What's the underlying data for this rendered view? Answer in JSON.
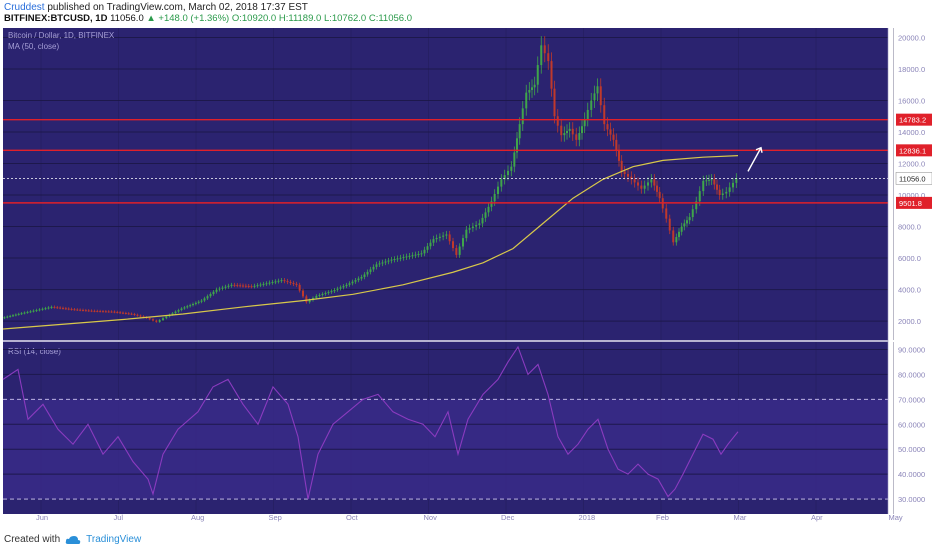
{
  "header": {
    "author": "Cruddest",
    "published_text": "published on TradingView.com, March 02, 2018 17:37 EST",
    "symbol": "BITFINEX:BTCUSD, 1D",
    "last": "11056.0",
    "change": "▲ +148.0 (+1.36%)",
    "open": "O:10920.0",
    "high": "H:11189.0",
    "low": "L:10762.0",
    "close": "C:11056.0"
  },
  "footer": {
    "created_with": "Created with",
    "brand": "TradingView"
  },
  "colors": {
    "background": "#2b2370",
    "grid": "#1d184c",
    "sma": "#d8c84a",
    "level_line": "#e0202a",
    "rsi_line": "#8a3bbf",
    "rsi_band": "#3a2a8a",
    "candle_up": "#3fa64a",
    "candle_down": "#c0392b",
    "label_bg": "#e0202a"
  },
  "chart_data": [
    {
      "type": "line",
      "title": "Bitcoin / Dollar, 1D, BITFINEX",
      "indicator": "MA (50, close)",
      "x_tick_labels": [
        "Jun",
        "Jul",
        "Aug",
        "Sep",
        "Oct",
        "Nov",
        "Dec",
        "2018",
        "Feb",
        "Mar",
        "Apr",
        "May"
      ],
      "y_tick_labels": [
        "2000.0",
        "4000.0",
        "6000.0",
        "8000.0",
        "10000.0",
        "12000.0",
        "14000.0",
        "16000.0",
        "18000.0",
        "20000.0"
      ],
      "ylim": [
        800,
        20600
      ],
      "price_series": [
        {
          "x": 0,
          "y": 2200
        },
        {
          "x": 20,
          "y": 2500
        },
        {
          "x": 35,
          "y": 2700
        },
        {
          "x": 50,
          "y": 2900
        },
        {
          "x": 70,
          "y": 2750
        },
        {
          "x": 90,
          "y": 2650
        },
        {
          "x": 110,
          "y": 2600
        },
        {
          "x": 130,
          "y": 2450
        },
        {
          "x": 145,
          "y": 2200
        },
        {
          "x": 155,
          "y": 1950
        },
        {
          "x": 165,
          "y": 2300
        },
        {
          "x": 180,
          "y": 2800
        },
        {
          "x": 200,
          "y": 3300
        },
        {
          "x": 215,
          "y": 4000
        },
        {
          "x": 230,
          "y": 4300
        },
        {
          "x": 250,
          "y": 4200
        },
        {
          "x": 265,
          "y": 4400
        },
        {
          "x": 280,
          "y": 4600
        },
        {
          "x": 295,
          "y": 4300
        },
        {
          "x": 305,
          "y": 3200
        },
        {
          "x": 315,
          "y": 3600
        },
        {
          "x": 330,
          "y": 3900
        },
        {
          "x": 345,
          "y": 4300
        },
        {
          "x": 360,
          "y": 4800
        },
        {
          "x": 375,
          "y": 5600
        },
        {
          "x": 390,
          "y": 5900
        },
        {
          "x": 405,
          "y": 6100
        },
        {
          "x": 420,
          "y": 6300
        },
        {
          "x": 432,
          "y": 7200
        },
        {
          "x": 445,
          "y": 7500
        },
        {
          "x": 455,
          "y": 6200
        },
        {
          "x": 465,
          "y": 7800
        },
        {
          "x": 478,
          "y": 8200
        },
        {
          "x": 490,
          "y": 9600
        },
        {
          "x": 500,
          "y": 11000
        },
        {
          "x": 510,
          "y": 11800
        },
        {
          "x": 518,
          "y": 14500
        },
        {
          "x": 525,
          "y": 16500
        },
        {
          "x": 533,
          "y": 17000
        },
        {
          "x": 540,
          "y": 19500
        },
        {
          "x": 547,
          "y": 18500
        },
        {
          "x": 553,
          "y": 15000
        },
        {
          "x": 560,
          "y": 13800
        },
        {
          "x": 568,
          "y": 14200
        },
        {
          "x": 575,
          "y": 13500
        },
        {
          "x": 583,
          "y": 14800
        },
        {
          "x": 590,
          "y": 16000
        },
        {
          "x": 596,
          "y": 16900
        },
        {
          "x": 603,
          "y": 14500
        },
        {
          "x": 612,
          "y": 13500
        },
        {
          "x": 620,
          "y": 11500
        },
        {
          "x": 630,
          "y": 11000
        },
        {
          "x": 640,
          "y": 10400
        },
        {
          "x": 650,
          "y": 11000
        },
        {
          "x": 658,
          "y": 9800
        },
        {
          "x": 665,
          "y": 8500
        },
        {
          "x": 672,
          "y": 7000
        },
        {
          "x": 680,
          "y": 8000
        },
        {
          "x": 688,
          "y": 8600
        },
        {
          "x": 695,
          "y": 9600
        },
        {
          "x": 702,
          "y": 10900
        },
        {
          "x": 710,
          "y": 11000
        },
        {
          "x": 718,
          "y": 10000
        },
        {
          "x": 725,
          "y": 10200
        },
        {
          "x": 735,
          "y": 11056
        }
      ],
      "sma_series": [
        {
          "x": 0,
          "y": 1500
        },
        {
          "x": 60,
          "y": 1800
        },
        {
          "x": 120,
          "y": 2100
        },
        {
          "x": 180,
          "y": 2450
        },
        {
          "x": 240,
          "y": 2900
        },
        {
          "x": 300,
          "y": 3300
        },
        {
          "x": 350,
          "y": 3700
        },
        {
          "x": 400,
          "y": 4300
        },
        {
          "x": 450,
          "y": 5100
        },
        {
          "x": 480,
          "y": 5700
        },
        {
          "x": 510,
          "y": 6600
        },
        {
          "x": 540,
          "y": 8200
        },
        {
          "x": 570,
          "y": 9800
        },
        {
          "x": 600,
          "y": 11000
        },
        {
          "x": 630,
          "y": 11800
        },
        {
          "x": 660,
          "y": 12200
        },
        {
          "x": 700,
          "y": 12400
        },
        {
          "x": 735,
          "y": 12500
        }
      ],
      "levels": [
        {
          "value": 14783.2,
          "label": "14783.2"
        },
        {
          "value": 12836.1,
          "label": "12836.1"
        },
        {
          "value": 9501.8,
          "label": "9501.8"
        }
      ],
      "current_price": {
        "value": 11056.0,
        "label": "11056.0"
      },
      "grid": true
    },
    {
      "type": "line",
      "title": "RSI (14, close)",
      "y_tick_labels": [
        "30.0000",
        "40.0000",
        "50.0000",
        "60.0000",
        "70.0000",
        "80.0000",
        "90.0000"
      ],
      "ylim": [
        24,
        93
      ],
      "overbought": 70,
      "oversold": 30,
      "series": [
        {
          "x": 0,
          "y": 78
        },
        {
          "x": 15,
          "y": 82
        },
        {
          "x": 25,
          "y": 62
        },
        {
          "x": 40,
          "y": 68
        },
        {
          "x": 55,
          "y": 58
        },
        {
          "x": 70,
          "y": 52
        },
        {
          "x": 85,
          "y": 60
        },
        {
          "x": 100,
          "y": 48
        },
        {
          "x": 115,
          "y": 55
        },
        {
          "x": 130,
          "y": 45
        },
        {
          "x": 145,
          "y": 38
        },
        {
          "x": 150,
          "y": 32
        },
        {
          "x": 160,
          "y": 48
        },
        {
          "x": 175,
          "y": 58
        },
        {
          "x": 195,
          "y": 65
        },
        {
          "x": 210,
          "y": 75
        },
        {
          "x": 225,
          "y": 78
        },
        {
          "x": 240,
          "y": 68
        },
        {
          "x": 255,
          "y": 60
        },
        {
          "x": 270,
          "y": 75
        },
        {
          "x": 285,
          "y": 68
        },
        {
          "x": 295,
          "y": 55
        },
        {
          "x": 305,
          "y": 30
        },
        {
          "x": 315,
          "y": 48
        },
        {
          "x": 330,
          "y": 60
        },
        {
          "x": 345,
          "y": 65
        },
        {
          "x": 360,
          "y": 70
        },
        {
          "x": 375,
          "y": 72
        },
        {
          "x": 390,
          "y": 65
        },
        {
          "x": 405,
          "y": 62
        },
        {
          "x": 420,
          "y": 60
        },
        {
          "x": 432,
          "y": 55
        },
        {
          "x": 445,
          "y": 65
        },
        {
          "x": 455,
          "y": 48
        },
        {
          "x": 465,
          "y": 62
        },
        {
          "x": 480,
          "y": 72
        },
        {
          "x": 495,
          "y": 78
        },
        {
          "x": 505,
          "y": 85
        },
        {
          "x": 515,
          "y": 91
        },
        {
          "x": 525,
          "y": 80
        },
        {
          "x": 535,
          "y": 84
        },
        {
          "x": 545,
          "y": 72
        },
        {
          "x": 555,
          "y": 55
        },
        {
          "x": 565,
          "y": 48
        },
        {
          "x": 575,
          "y": 52
        },
        {
          "x": 585,
          "y": 58
        },
        {
          "x": 595,
          "y": 62
        },
        {
          "x": 605,
          "y": 50
        },
        {
          "x": 615,
          "y": 42
        },
        {
          "x": 625,
          "y": 40
        },
        {
          "x": 635,
          "y": 44
        },
        {
          "x": 645,
          "y": 40
        },
        {
          "x": 655,
          "y": 38
        },
        {
          "x": 665,
          "y": 31
        },
        {
          "x": 672,
          "y": 34
        },
        {
          "x": 680,
          "y": 40
        },
        {
          "x": 690,
          "y": 48
        },
        {
          "x": 700,
          "y": 56
        },
        {
          "x": 710,
          "y": 54
        },
        {
          "x": 718,
          "y": 48
        },
        {
          "x": 725,
          "y": 52
        },
        {
          "x": 735,
          "y": 57
        }
      ]
    }
  ]
}
